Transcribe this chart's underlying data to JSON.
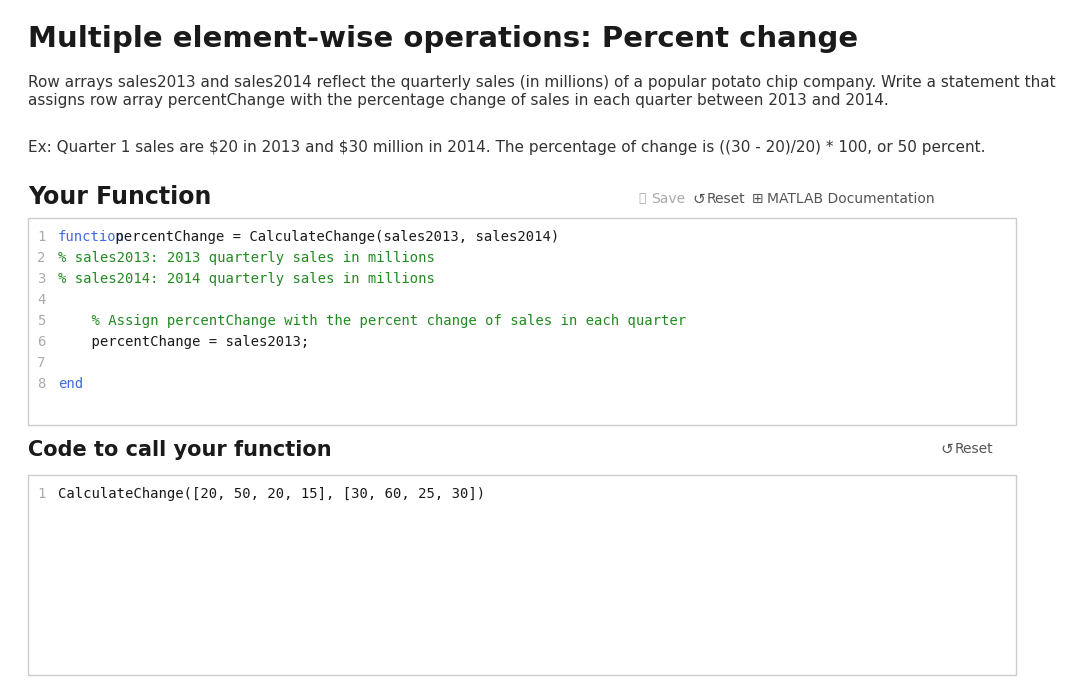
{
  "title": "Multiple element-wise operations: Percent change",
  "description_line1": "Row arrays sales2013 and sales2014 reflect the quarterly sales (in millions) of a popular potato chip company. Write a statement that",
  "description_line2": "assigns row array percentChange with the percentage change of sales in each quarter between 2013 and 2014.",
  "example_line": "Ex: Quarter 1 sales are $20 in 2013 and $30 million in 2014. The percentage of change is ((30 - 20)/20) * 100, or 50 percent.",
  "section1_title": "Your Function",
  "save_label": "Save",
  "reset_label": "Reset",
  "matlab_label": "MATLAB Documentation",
  "code_lines": [
    {
      "num": 1,
      "parts": [
        {
          "text": "function",
          "color": "#4169E1"
        },
        {
          "text": " percentChange = CalculateChange(sales2013, sales2014)",
          "color": "#1a1a1a"
        }
      ]
    },
    {
      "num": 2,
      "parts": [
        {
          "text": "% sales2013: 2013 quarterly sales in millions",
          "color": "#228B22"
        }
      ]
    },
    {
      "num": 3,
      "parts": [
        {
          "text": "% sales2014: 2014 quarterly sales in millions",
          "color": "#228B22"
        }
      ]
    },
    {
      "num": 4,
      "parts": []
    },
    {
      "num": 5,
      "parts": [
        {
          "text": "    % Assign percentChange with the percent change of sales in each quarter",
          "color": "#228B22"
        }
      ]
    },
    {
      "num": 6,
      "parts": [
        {
          "text": "    percentChange = sales2013;",
          "color": "#1a1a1a"
        }
      ]
    },
    {
      "num": 7,
      "parts": []
    },
    {
      "num": 8,
      "parts": [
        {
          "text": "end",
          "color": "#4169E1"
        }
      ]
    }
  ],
  "section2_title": "Code to call your function",
  "reset2_label": "Reset",
  "code2_lines": [
    {
      "num": 1,
      "text": "CalculateChange([20, 50, 20, 15], [30, 60, 25, 30])",
      "color": "#1a1a1a"
    }
  ],
  "bg_color": "#ffffff",
  "code_border_color": "#cccccc",
  "line_num_color": "#aaaaaa",
  "toolbar_gray": "#aaaaaa",
  "toolbar_dark": "#555555"
}
